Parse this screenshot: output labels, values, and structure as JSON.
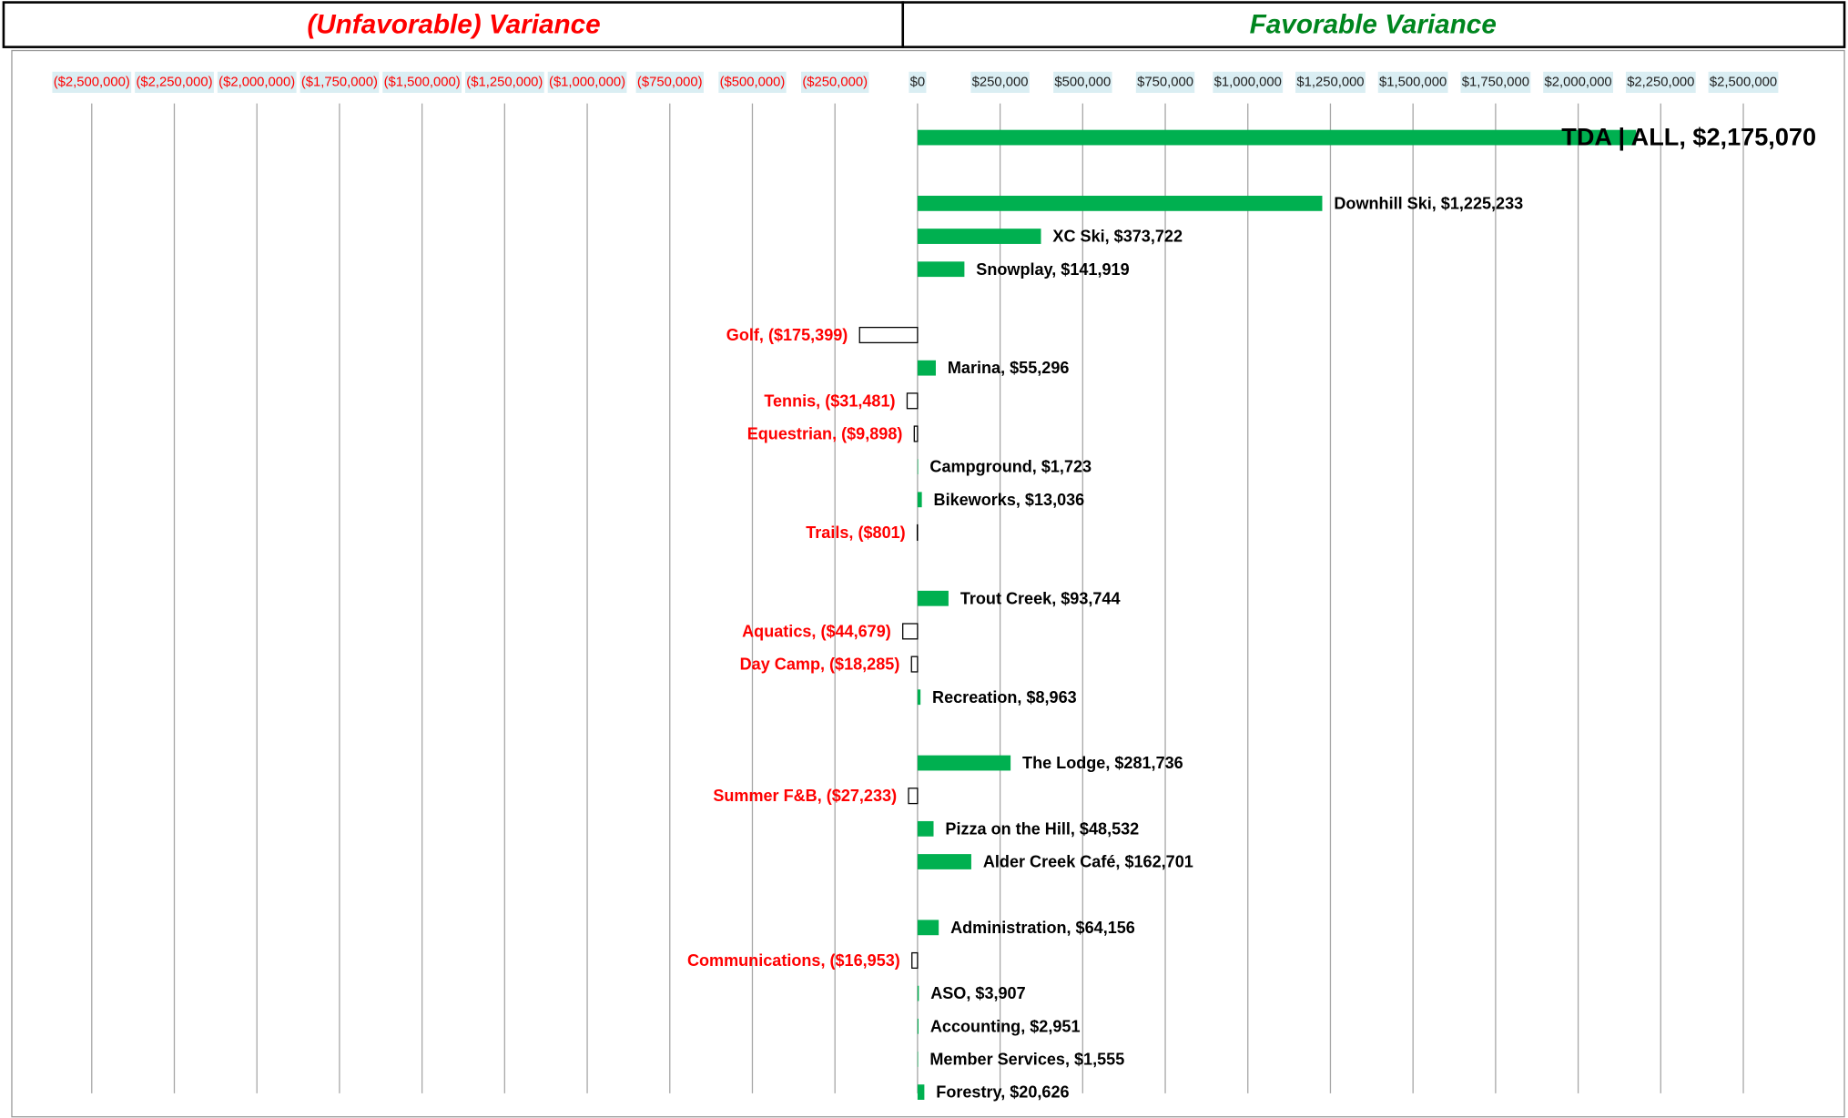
{
  "header": {
    "left": "(Unfavorable)  Variance",
    "right": "Favorable  Variance"
  },
  "chart_data": {
    "type": "bar",
    "orientation": "horizontal",
    "values": [
      2175070,
      null,
      1225233,
      373722,
      141919,
      null,
      -175399,
      55296,
      -31481,
      -9898,
      1723,
      13036,
      -801,
      null,
      93744,
      -44679,
      -18285,
      8963,
      null,
      281736,
      -27233,
      48532,
      162701,
      null,
      64156,
      -16953,
      3907,
      2951,
      1555,
      20626
    ],
    "value_labels": [
      "TDA | ALL, $2,175,070",
      null,
      "Downhill Ski, $1,225,233",
      "XC Ski, $373,722",
      "Snowplay, $141,919",
      null,
      "Golf, ($175,399)",
      "Marina, $55,296",
      "Tennis, ($31,481)",
      "Equestrian, ($9,898)",
      "Campground, $1,723",
      "Bikeworks, $13,036",
      "Trails, ($801)",
      null,
      "Trout Creek, $93,744",
      "Aquatics, ($44,679)",
      "Day Camp, ($18,285)",
      "Recreation, $8,963",
      null,
      "The Lodge, $281,736",
      "Summer F&B, ($27,233)",
      "Pizza on the Hill, $48,532",
      "Alder Creek Café, $162,701",
      null,
      "Administration, $64,156",
      "Communications, ($16,953)",
      "ASO, $3,907",
      "Accounting, $2,951",
      "Member Services, $1,555",
      "Forestry, $20,626"
    ],
    "color": "#00b050",
    "negative_color": "#ffffff",
    "negative_label_color": "#ff0000",
    "xlim": [
      -2500000,
      2500000
    ],
    "xticks": [
      {
        "value": -2500000,
        "label": "($2,500,000)"
      },
      {
        "value": -2250000,
        "label": "($2,250,000)"
      },
      {
        "value": -2000000,
        "label": "($2,000,000)"
      },
      {
        "value": -1750000,
        "label": "($1,750,000)"
      },
      {
        "value": -1500000,
        "label": "($1,500,000)"
      },
      {
        "value": -1250000,
        "label": "($1,250,000)"
      },
      {
        "value": -1000000,
        "label": "($1,000,000)"
      },
      {
        "value": -750000,
        "label": "($750,000)"
      },
      {
        "value": -500000,
        "label": "($500,000)"
      },
      {
        "value": -250000,
        "label": "($250,000)"
      },
      {
        "value": 0,
        "label": "$0"
      },
      {
        "value": 250000,
        "label": "$250,000"
      },
      {
        "value": 500000,
        "label": "$500,000"
      },
      {
        "value": 750000,
        "label": "$750,000"
      },
      {
        "value": 1000000,
        "label": "$1,000,000"
      },
      {
        "value": 1250000,
        "label": "$1,250,000"
      },
      {
        "value": 1500000,
        "label": "$1,500,000"
      },
      {
        "value": 1750000,
        "label": "$1,750,000"
      },
      {
        "value": 2000000,
        "label": "$2,000,000"
      },
      {
        "value": 2250000,
        "label": "$2,250,000"
      },
      {
        "value": 2500000,
        "label": "$2,500,000"
      }
    ],
    "grid": true
  }
}
